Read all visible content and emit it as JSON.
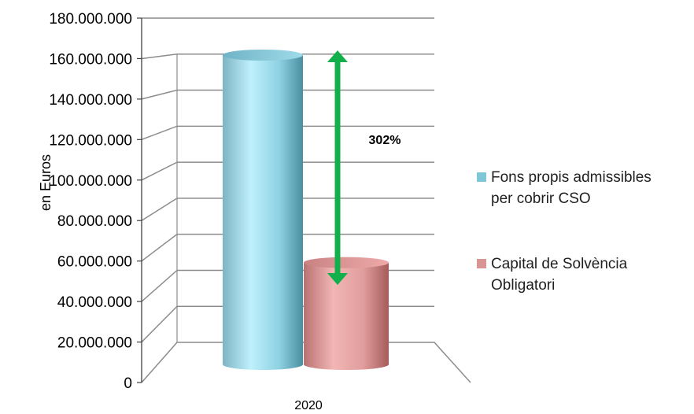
{
  "chart_data": {
    "type": "bar",
    "categories": [
      "2020"
    ],
    "ylabel": "en Euros",
    "ylim": [
      0,
      180000000
    ],
    "yticks": [
      {
        "value": 0,
        "label": "0"
      },
      {
        "value": 20000000,
        "label": "20.000.000"
      },
      {
        "value": 40000000,
        "label": "40.000.000"
      },
      {
        "value": 60000000,
        "label": "60.000.000"
      },
      {
        "value": 80000000,
        "label": "80.000.000"
      },
      {
        "value": 100000000,
        "label": "100.000.000"
      },
      {
        "value": 120000000,
        "label": "120.000.000"
      },
      {
        "value": 140000000,
        "label": "140.000.000"
      },
      {
        "value": 160000000,
        "label": "160.000.000"
      },
      {
        "value": 180000000,
        "label": "180.000.000"
      }
    ],
    "series": [
      {
        "name": "Fons propis admissibles per cobrir CSO",
        "values": [
          158000000
        ],
        "color": "#7fc6d9"
      },
      {
        "name": "Capital de Solvència Obligatori",
        "values": [
          52000000
        ],
        "color": "#d99594"
      }
    ],
    "annotation": {
      "label": "302%",
      "color": "#12b04a"
    },
    "legend_position": "right",
    "grid": true
  }
}
